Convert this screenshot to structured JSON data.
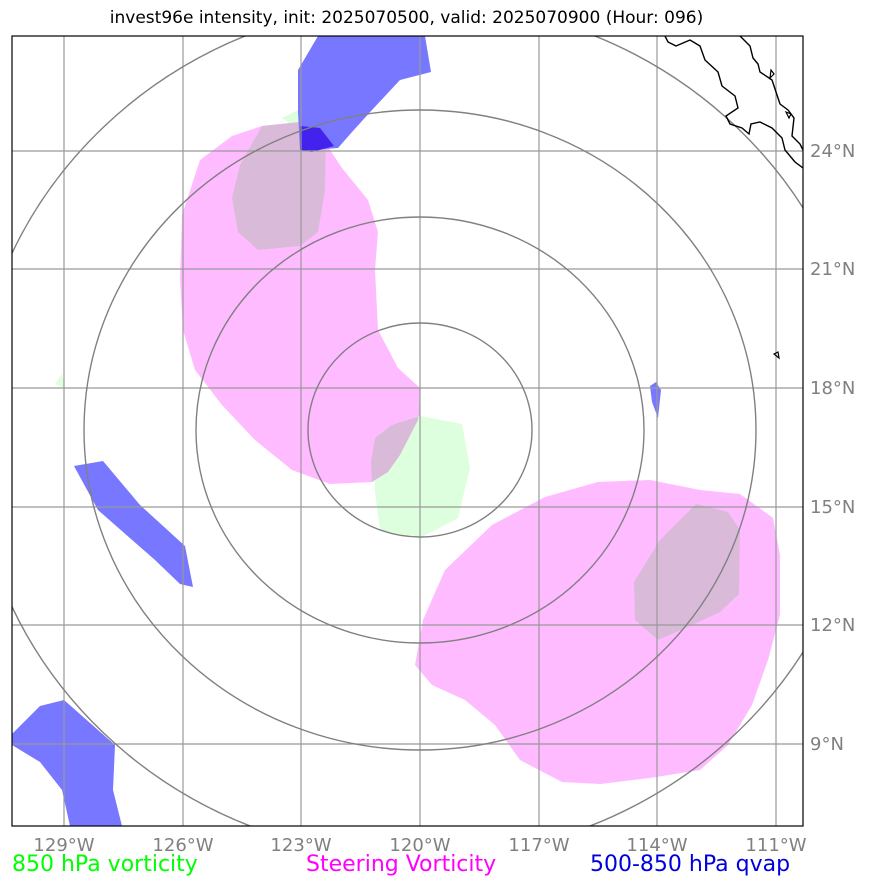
{
  "title": "invest96e intensity, init: 2025070500, valid: 2025070900 (Hour: 096)",
  "lon_labels": [
    "129°W",
    "126°W",
    "123°W",
    "120°W",
    "117°W",
    "114°W",
    "111°W"
  ],
  "lat_labels": [
    "24°N",
    "21°N",
    "18°N",
    "15°N",
    "12°N",
    "9°N"
  ],
  "legend": {
    "green": "850 hPa vorticity",
    "magenta": "Steering Vorticity",
    "blue": "500-850 hPa qvap"
  },
  "colors": {
    "green": "#00ff00",
    "magenta": "#ff00ff",
    "blue": "#0000dd",
    "grid": "#999999",
    "rings": "#808080"
  }
}
